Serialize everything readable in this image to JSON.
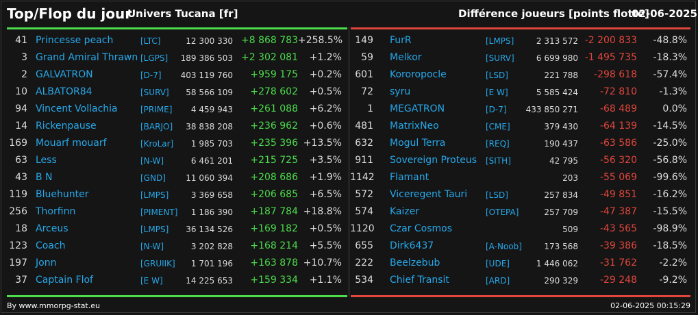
{
  "header": {
    "title": "Top/Flop du jour",
    "universe": "Univers Tucana [fr]",
    "metric": "Différence joueurs [points flotte]",
    "date": "02-06-2025"
  },
  "colors": {
    "positive": "#4cdc4c",
    "negative": "#e0463c",
    "link": "#27a8ea"
  },
  "top": [
    {
      "rank": "41",
      "name": "Princesse peach",
      "ally": "[LTC]",
      "points": "12 300 330",
      "diff": "+8 868 783",
      "pct": "+258.5%"
    },
    {
      "rank": "3",
      "name": "Grand Amiral Thrawn",
      "ally": "[LGPS]",
      "points": "189 386 503",
      "diff": "+2 302 081",
      "pct": "+1.2%"
    },
    {
      "rank": "2",
      "name": "GALVATRON",
      "ally": "[D-7]",
      "points": "403 119 760",
      "diff": "+959 175",
      "pct": "+0.2%"
    },
    {
      "rank": "10",
      "name": "ALBATOR84",
      "ally": "[SURV]",
      "points": "58 566 109",
      "diff": "+278 602",
      "pct": "+0.5%"
    },
    {
      "rank": "94",
      "name": "Vincent Vollachia",
      "ally": "[PRIME]",
      "points": "4 459 943",
      "diff": "+261 088",
      "pct": "+6.2%"
    },
    {
      "rank": "14",
      "name": "Rickenpause",
      "ally": "[BARJO]",
      "points": "38 838 208",
      "diff": "+236 962",
      "pct": "+0.6%"
    },
    {
      "rank": "169",
      "name": "Mouarf mouarf",
      "ally": "[KroLar]",
      "points": "1 985 703",
      "diff": "+235 396",
      "pct": "+13.5%"
    },
    {
      "rank": "63",
      "name": "Less",
      "ally": "[N-W]",
      "points": "6 461 201",
      "diff": "+215 725",
      "pct": "+3.5%"
    },
    {
      "rank": "43",
      "name": "B N",
      "ally": "[GND]",
      "points": "11 060 394",
      "diff": "+208 686",
      "pct": "+1.9%"
    },
    {
      "rank": "119",
      "name": "Bluehunter",
      "ally": "[LMPS]",
      "points": "3 369 658",
      "diff": "+206 685",
      "pct": "+6.5%"
    },
    {
      "rank": "256",
      "name": "Thorfinn",
      "ally": "[PIMENT]",
      "points": "1 186 390",
      "diff": "+187 784",
      "pct": "+18.8%"
    },
    {
      "rank": "18",
      "name": "Arceus",
      "ally": "[LMPS]",
      "points": "36 134 526",
      "diff": "+169 182",
      "pct": "+0.5%"
    },
    {
      "rank": "123",
      "name": "Coach",
      "ally": "[N-W]",
      "points": "3 202 828",
      "diff": "+168 214",
      "pct": "+5.5%"
    },
    {
      "rank": "197",
      "name": "Jonn",
      "ally": "[GRUIIK]",
      "points": "1 701 196",
      "diff": "+163 878",
      "pct": "+10.7%"
    },
    {
      "rank": "37",
      "name": "Captain Flof",
      "ally": "[E W]",
      "points": "14 225 653",
      "diff": "+159 334",
      "pct": "+1.1%"
    }
  ],
  "flop": [
    {
      "rank": "149",
      "name": "FurR",
      "ally": "[LMPS]",
      "points": "2 313 572",
      "diff": "-2 200 833",
      "pct": "-48.8%"
    },
    {
      "rank": "59",
      "name": "Melkor",
      "ally": "[SURV]",
      "points": "6 699 980",
      "diff": "-1 495 735",
      "pct": "-18.3%"
    },
    {
      "rank": "601",
      "name": "Kororopocle",
      "ally": "[LSD]",
      "points": "221 788",
      "diff": "-298 618",
      "pct": "-57.4%"
    },
    {
      "rank": "72",
      "name": "syru",
      "ally": "[E W]",
      "points": "5 585 424",
      "diff": "-72 810",
      "pct": "-1.3%"
    },
    {
      "rank": "1",
      "name": "MEGATRON",
      "ally": "[D-7]",
      "points": "433 850 271",
      "diff": "-68 489",
      "pct": "0.0%"
    },
    {
      "rank": "481",
      "name": "MatrixNeo",
      "ally": "[CME]",
      "points": "379 430",
      "diff": "-64 139",
      "pct": "-14.5%"
    },
    {
      "rank": "632",
      "name": "Mogul Terra",
      "ally": "[REQ]",
      "points": "190 437",
      "diff": "-63 586",
      "pct": "-25.0%"
    },
    {
      "rank": "911",
      "name": "Sovereign Proteus",
      "ally": "[SITH]",
      "points": "42 795",
      "diff": "-56 320",
      "pct": "-56.8%"
    },
    {
      "rank": "1142",
      "name": "Flamant",
      "ally": "",
      "points": "203",
      "diff": "-55 069",
      "pct": "-99.6%"
    },
    {
      "rank": "572",
      "name": "Viceregent Tauri",
      "ally": "[LSD]",
      "points": "257 834",
      "diff": "-49 851",
      "pct": "-16.2%"
    },
    {
      "rank": "574",
      "name": "Kaizer",
      "ally": "[OTEPA]",
      "points": "257 709",
      "diff": "-47 387",
      "pct": "-15.5%"
    },
    {
      "rank": "1120",
      "name": "Czar Cosmos",
      "ally": "",
      "points": "509",
      "diff": "-43 565",
      "pct": "-98.9%"
    },
    {
      "rank": "655",
      "name": "Dirk6437",
      "ally": "[A-Noob]",
      "points": "173 568",
      "diff": "-39 386",
      "pct": "-18.5%"
    },
    {
      "rank": "222",
      "name": "Beelzebub",
      "ally": "[UDE]",
      "points": "1 446 062",
      "diff": "-31 762",
      "pct": "-2.2%"
    },
    {
      "rank": "534",
      "name": "Chief Transit",
      "ally": "[ARD]",
      "points": "290 329",
      "diff": "-29 248",
      "pct": "-9.2%"
    }
  ],
  "footer": {
    "source": "By www.mmorpg-stat.eu",
    "timestamp": "02-06-2025 00:15:29"
  }
}
